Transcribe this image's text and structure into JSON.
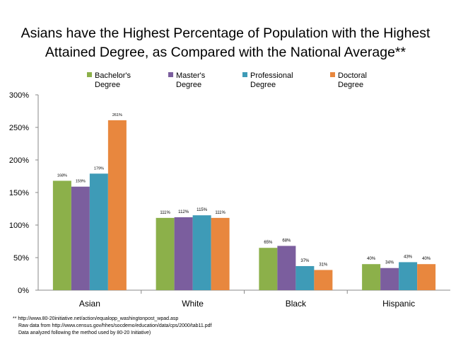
{
  "chart_data": {
    "type": "bar",
    "title_lines": [
      "Asians have the Highest Percentage of Population with the Highest",
      "Attained Degree, as Compared with the National Average**"
    ],
    "categories": [
      "Asian",
      "White",
      "Black",
      "Hispanic"
    ],
    "series": [
      {
        "name": "Bachelor's Degree",
        "color": "#8CB04A",
        "values": [
          168,
          111,
          65,
          40
        ],
        "labels": [
          "168%",
          "111%",
          "65%",
          "40%"
        ]
      },
      {
        "name": "Master's Degree",
        "color": "#7B5E9E",
        "values": [
          159,
          112,
          68,
          34
        ],
        "labels": [
          "159%",
          "112%",
          "68%",
          "34%"
        ]
      },
      {
        "name": "Professional Degree",
        "color": "#3E9BB7",
        "values": [
          179,
          115,
          37,
          43
        ],
        "labels": [
          "179%",
          "115%",
          "37%",
          "43%"
        ]
      },
      {
        "name": "Doctoral Degree",
        "color": "#E8873E",
        "values": [
          261,
          111,
          31,
          40
        ],
        "labels": [
          "261%",
          "111%",
          "31%",
          "40%"
        ]
      }
    ],
    "legend_labels": [
      [
        "Bachelor's",
        "Degree"
      ],
      [
        "Master's",
        "Degree"
      ],
      [
        "Professional",
        "Degree"
      ],
      [
        "Doctoral",
        "Degree"
      ]
    ],
    "yticks": [
      "0%",
      "50%",
      "100%",
      "150%",
      "200%",
      "250%",
      "300%"
    ],
    "ylim": [
      0,
      300
    ],
    "legend_position": "top",
    "grid": false
  },
  "footnote": [
    "** http://www.80-20initiative.net/action/equalopp_washingtonpost_wpad.asp",
    "Raw data from http://www.census.gov/hhes/socdemo/education/data/cps/2000/tab11.pdf",
    "Data analyzed following the method used by 80-20 Initiative)"
  ]
}
